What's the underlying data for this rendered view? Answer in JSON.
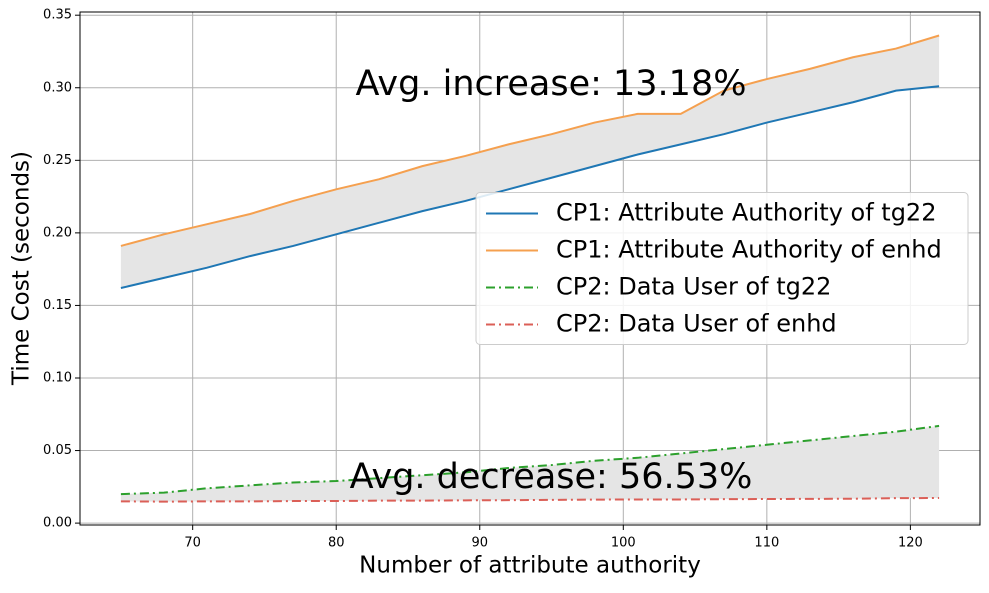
{
  "chart_data": {
    "type": "line",
    "xlabel": "Number of attribute authority",
    "ylabel": "Time Cost (seconds)",
    "x": [
      65,
      68,
      71,
      74,
      77,
      80,
      83,
      86,
      89,
      92,
      95,
      98,
      101,
      104,
      107,
      110,
      113,
      116,
      119,
      122
    ],
    "series": [
      {
        "name": "CP1: Attribute Authority of tg22",
        "color": "#1f77b4",
        "linestyle": "solid",
        "values": [
          0.162,
          0.169,
          0.176,
          0.184,
          0.191,
          0.199,
          0.207,
          0.215,
          0.222,
          0.23,
          0.238,
          0.246,
          0.254,
          0.261,
          0.268,
          0.276,
          0.283,
          0.29,
          0.298,
          0.301
        ]
      },
      {
        "name": "CP1: Attribute Authority of enhd",
        "color": "#f5a04f",
        "linestyle": "solid",
        "values": [
          0.191,
          0.199,
          0.206,
          0.213,
          0.222,
          0.23,
          0.237,
          0.246,
          0.253,
          0.261,
          0.268,
          0.276,
          0.282,
          0.282,
          0.298,
          0.306,
          0.313,
          0.321,
          0.327,
          0.336
        ]
      },
      {
        "name": "CP2: Data User of tg22",
        "color": "#2ca02c",
        "linestyle": "dashdot",
        "values": [
          0.02,
          0.021,
          0.024,
          0.026,
          0.028,
          0.029,
          0.031,
          0.033,
          0.035,
          0.038,
          0.04,
          0.043,
          0.045,
          0.048,
          0.051,
          0.054,
          0.057,
          0.06,
          0.063,
          0.067
        ]
      },
      {
        "name": "CP2: Data User of enhd",
        "color": "#db5f57",
        "linestyle": "dashdot",
        "values": [
          0.015,
          0.0148,
          0.015,
          0.015,
          0.0152,
          0.0152,
          0.0155,
          0.0155,
          0.0157,
          0.0158,
          0.016,
          0.0162,
          0.0163,
          0.0163,
          0.0165,
          0.0166,
          0.0167,
          0.0168,
          0.0172,
          0.0173
        ]
      }
    ],
    "fill_between": [
      [
        0,
        1
      ],
      [
        2,
        3
      ]
    ],
    "fill_color": "#e5e5e5",
    "annotations": [
      "Avg. increase: 13.18%",
      "Avg. decrease: 56.53%"
    ],
    "xlim": [
      62.15,
      124.85
    ],
    "xticks": [
      70,
      80,
      90,
      100,
      110,
      120
    ],
    "ylim": [
      -0.0013,
      0.3522
    ],
    "yticks": [
      {
        "value": 0,
        "label": "0.00"
      },
      0.05,
      {
        "value": 0.1,
        "label": "0.10"
      },
      0.15,
      {
        "value": 0.2,
        "label": "0.20"
      },
      0.25,
      {
        "value": 0.3,
        "label": "0.30"
      },
      0.35
    ],
    "grid": true,
    "legend": "center right"
  }
}
